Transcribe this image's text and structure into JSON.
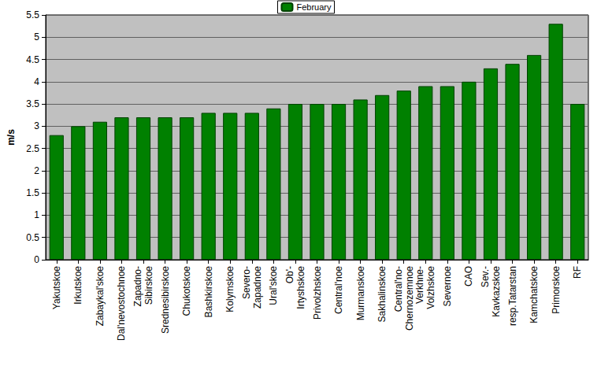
{
  "chart_data": {
    "type": "bar",
    "y_label": "m/s",
    "categories": [
      "Yakutskoe",
      "Irkutskoe",
      "Zabaykal'skoe",
      "Dal'nevostochnoe",
      "Zapadno-\nSibirskoe",
      "Srednesibirskoe",
      "Chukotskoe",
      "Bashkirskoe",
      "Kolymskoe",
      "Severo-\nZapadnoe",
      "Ural'skoe",
      "Ob'-\nIrtyshskoe",
      "Privolzhskoe",
      "Central'noe",
      "Murmanskoe",
      "Sakhalinskoe",
      "Central'no-\nChernozemnoe",
      "Verkhne-\nVolzhskoe",
      "Severnoe",
      "CAO",
      "Sev.-\nKavkazskoe",
      "resp.Tatarstan",
      "Kamchatskoe",
      "Primorskoe",
      "RF"
    ],
    "series": [
      {
        "name": "February",
        "color": "#008000",
        "values": [
          2.8,
          3.0,
          3.1,
          3.2,
          3.2,
          3.2,
          3.2,
          3.3,
          3.3,
          3.3,
          3.4,
          3.5,
          3.5,
          3.5,
          3.6,
          3.7,
          3.8,
          3.9,
          3.9,
          4.0,
          4.3,
          4.4,
          4.6,
          5.3,
          3.5
        ]
      }
    ],
    "ylim": [
      0,
      5.5
    ],
    "yticks": [
      0,
      0.5,
      1,
      1.5,
      2,
      2.5,
      3,
      3.5,
      4,
      4.5,
      5,
      5.5
    ],
    "grid": true,
    "legend": "top"
  }
}
